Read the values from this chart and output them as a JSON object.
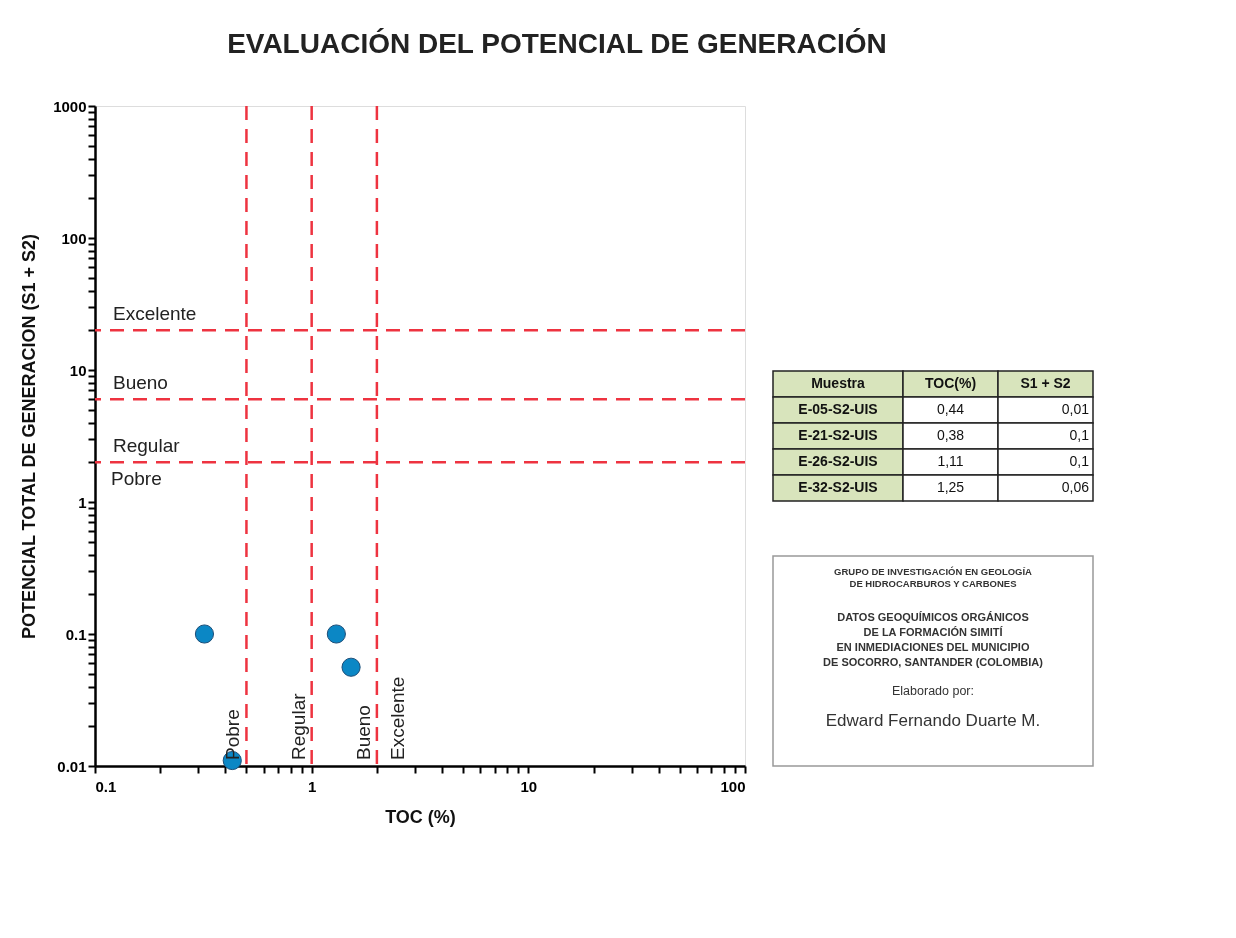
{
  "chart_data": [
    {
      "type": "scatter",
      "title": "EVALUACIÓN DEL POTENCIAL DE GENERACIÓN",
      "xlabel": "TOC (%)",
      "ylabel": "POTENCIAL TOTAL DE GENERACION (S1 + S2)",
      "log": "xy",
      "grid": false,
      "legend": false,
      "marker": "circle",
      "xlim": [
        0.1,
        100
      ],
      "ylim": [
        0.01,
        1000
      ],
      "xticks": [
        0.1,
        {
          "value": 0.2,
          "label": null
        },
        {
          "value": 0.3,
          "label": null
        },
        {
          "value": 0.4,
          "label": null
        },
        {
          "value": 0.5,
          "label": null
        },
        {
          "value": 0.6,
          "label": null
        },
        {
          "value": 0.7,
          "label": null
        },
        {
          "value": 0.8,
          "label": null
        },
        {
          "value": 0.9,
          "label": null
        },
        1,
        {
          "value": 2,
          "label": null
        },
        {
          "value": 3,
          "label": null
        },
        {
          "value": 4,
          "label": null
        },
        {
          "value": 5,
          "label": null
        },
        {
          "value": 6,
          "label": null
        },
        {
          "value": 7,
          "label": null
        },
        {
          "value": 8,
          "label": null
        },
        {
          "value": 9,
          "label": null
        },
        10,
        {
          "value": 20,
          "label": null
        },
        {
          "value": 30,
          "label": null
        },
        {
          "value": 40,
          "label": null
        },
        {
          "value": 50,
          "label": null
        },
        {
          "value": 60,
          "label": null
        },
        {
          "value": 70,
          "label": null
        },
        {
          "value": 80,
          "label": null
        },
        {
          "value": 90,
          "label": null
        },
        100
      ],
      "yticks": [
        0.01,
        {
          "value": 0.02,
          "label": null
        },
        {
          "value": 0.03,
          "label": null
        },
        {
          "value": 0.04,
          "label": null
        },
        {
          "value": 0.05,
          "label": null
        },
        {
          "value": 0.06,
          "label": null
        },
        {
          "value": 0.07,
          "label": null
        },
        {
          "value": 0.08,
          "label": null
        },
        {
          "value": 0.09,
          "label": null
        },
        0.1,
        {
          "value": 0.2,
          "label": null
        },
        {
          "value": 0.3,
          "label": null
        },
        {
          "value": 0.4,
          "label": null
        },
        {
          "value": 0.5,
          "label": null
        },
        {
          "value": 0.6,
          "label": null
        },
        {
          "value": 0.7,
          "label": null
        },
        {
          "value": 0.8,
          "label": null
        },
        {
          "value": 0.9,
          "label": null
        },
        1,
        {
          "value": 2,
          "label": null
        },
        {
          "value": 3,
          "label": null
        },
        {
          "value": 4,
          "label": null
        },
        {
          "value": 5,
          "label": null
        },
        {
          "value": 6,
          "label": null
        },
        {
          "value": 7,
          "label": null
        },
        {
          "value": 8,
          "label": null
        },
        {
          "value": 9,
          "label": null
        },
        10,
        {
          "value": 20,
          "label": null
        },
        {
          "value": 30,
          "label": null
        },
        {
          "value": 40,
          "label": null
        },
        {
          "value": 50,
          "label": null
        },
        {
          "value": 60,
          "label": null
        },
        {
          "value": 70,
          "label": null
        },
        {
          "value": 80,
          "label": null
        },
        {
          "value": 90,
          "label": null
        },
        100,
        {
          "value": 200,
          "label": null
        },
        {
          "value": 300,
          "label": null
        },
        {
          "value": 400,
          "label": null
        },
        {
          "value": 500,
          "label": null
        },
        {
          "value": 600,
          "label": null
        },
        {
          "value": 700,
          "label": null
        },
        {
          "value": 800,
          "label": null
        },
        {
          "value": 900,
          "label": null
        },
        1000
      ],
      "series": [
        {
          "color": "#0b87c5",
          "x": [
            0.32,
            0.43,
            1.3,
            1.52
          ],
          "values": [
            0.1,
            0.011,
            0.1,
            0.056
          ]
        }
      ],
      "ref_lines": [
        {
          "axis": "x",
          "value": 0.5,
          "label": "Pobre",
          "color": "#ee3340",
          "line_style": "dashed"
        },
        {
          "axis": "x",
          "value": 1,
          "label": "Regular",
          "color": "#ee3340",
          "line_style": "dashed"
        },
        {
          "axis": "x",
          "value": 2,
          "label": "Bueno",
          "color": "#ee3340",
          "line_style": "dashed"
        },
        {
          "axis": "y",
          "value": 20,
          "label": "Excelente",
          "color": "#ee3340",
          "line_style": "dashed"
        },
        {
          "axis": "y",
          "value": 6,
          "label": "Bueno",
          "color": "#ee3340",
          "line_style": "dashed"
        },
        {
          "axis": "y",
          "value": 2,
          "label": "Regular",
          "color": "#ee3340",
          "line_style": "dashed"
        }
      ],
      "annotations": [
        "Pobre",
        "Excelente"
      ]
    },
    {
      "type": "other",
      "categories": [
        "Muestra",
        "TOC(%)",
        "S1 + S2"
      ],
      "annotations": [
        "E-05-S2-UIS",
        "0,44",
        "0,01",
        "E-21-S2-UIS",
        "0,38",
        "0,1",
        "E-26-S2-UIS",
        "1,11",
        "0,1",
        "E-32-S2-UIS",
        "1,25",
        "0,06"
      ]
    },
    {
      "type": "other",
      "annotations": [
        "GRUPO DE INVESTIGACIÓN EN GEOLOGÍA",
        "DE HIDROCARBUROS Y CARBONES",
        "DATOS GEOQUÍMICOS ORGÁNICOS",
        "DE LA FORMACIÓN SIMITÍ",
        "EN INMEDIACIONES DEL MUNICIPIO",
        "DE SOCORRO, SANTANDER (COLOMBIA)",
        "Elaborado por:",
        "Edward Fernando Duarte M."
      ]
    }
  ]
}
